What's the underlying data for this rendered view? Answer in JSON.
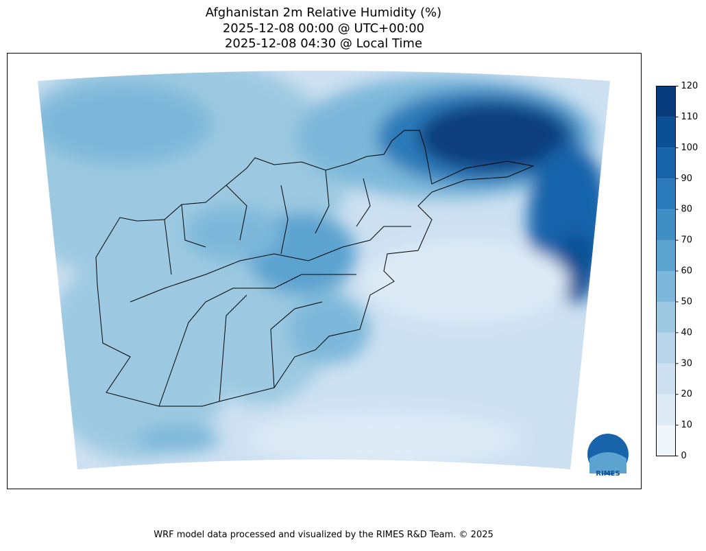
{
  "title": [
    "Afghanistan 2m Relative Humidity (%)",
    "2025-12-08 00:00 @ UTC+00:00",
    "2025-12-08 04:30 @ Local Time"
  ],
  "colorbar": {
    "lim": [
      0,
      120
    ],
    "ticks": [
      0,
      10,
      20,
      30,
      40,
      50,
      60,
      70,
      80,
      90,
      100,
      110,
      120
    ],
    "colors": [
      "#eff6fc",
      "#deebf7",
      "#cde0f1",
      "#b7d4ea",
      "#9cc9e1",
      "#7db8da",
      "#5ca3d0",
      "#3f8fc5",
      "#2a7ab9",
      "#1764ab",
      "#0b4f95",
      "#083c7d"
    ]
  },
  "logo": "RIMES",
  "footer": "WRF model data processed and visualized by the RIMES R&D Team. © 2025"
}
